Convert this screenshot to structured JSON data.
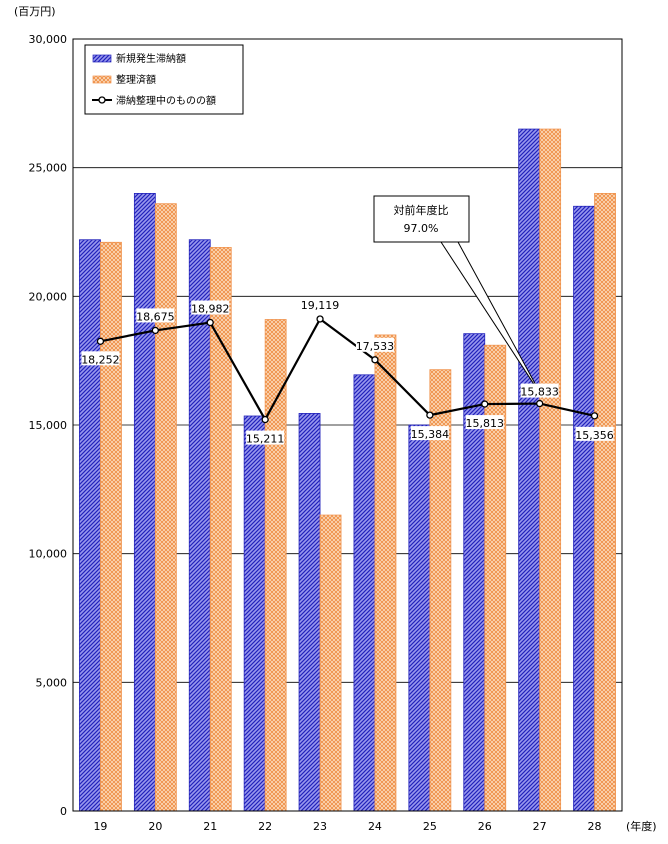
{
  "chart_data": {
    "type": "bar",
    "y_unit": "(百万円)",
    "x_unit": "(年度)",
    "categories": [
      "19",
      "20",
      "21",
      "22",
      "23",
      "24",
      "25",
      "26",
      "27",
      "28"
    ],
    "ylim": [
      0,
      30000
    ],
    "yticks": [
      0,
      5000,
      10000,
      15000,
      20000,
      25000,
      30000
    ],
    "ytick_labels": [
      "0",
      "5,000",
      "10,000",
      "15,000",
      "20,000",
      "25,000",
      "30,000"
    ],
    "grid": true,
    "legend_placement": "top-left",
    "series": [
      {
        "name": "新規発生滞納額",
        "kind": "bar",
        "color": "#3333cc",
        "values": [
          22200,
          24000,
          22200,
          15350,
          15450,
          16950,
          15000,
          18550,
          26500,
          23500
        ]
      },
      {
        "name": "整理済額",
        "kind": "bar",
        "color": "#f4a56a",
        "values": [
          22100,
          23600,
          21900,
          19100,
          11500,
          18500,
          17150,
          18100,
          26500,
          24000
        ]
      },
      {
        "name": "滞納整理中のものの額",
        "kind": "line",
        "color": "#000000",
        "values": [
          18252,
          18675,
          18982,
          15211,
          19119,
          17533,
          15384,
          15813,
          15833,
          15356
        ]
      }
    ],
    "line_labels": [
      "18,252",
      "18,675",
      "18,982",
      "15,211",
      "19,119",
      "17,533",
      "15,384",
      "15,813",
      "15,833",
      "15,356"
    ],
    "annotation": {
      "line1": "対前年度比",
      "line2": "97.0%"
    }
  }
}
